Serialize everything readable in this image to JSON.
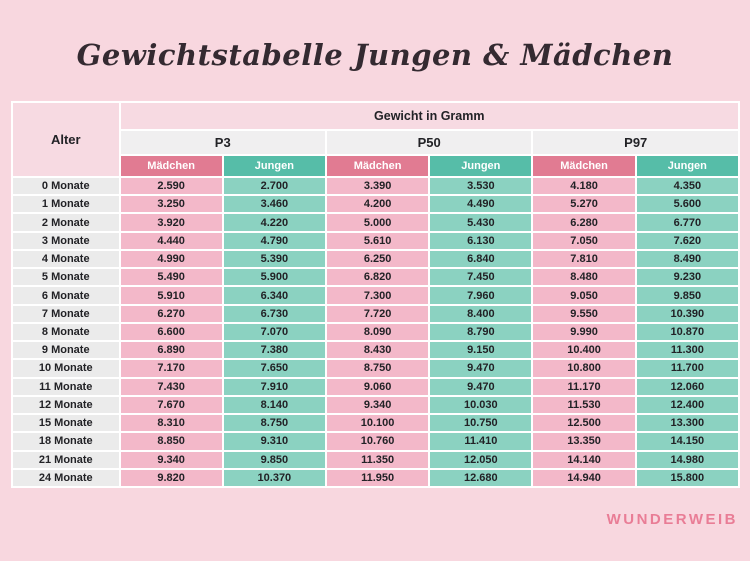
{
  "page": {
    "title": "Gewichtstabelle Jungen & Mädchen",
    "brand": "WUNDERWEIB"
  },
  "colors": {
    "page_background": "#f8d7df",
    "header_pink": "#f7dae2",
    "percentile_gray": "#f0eff0",
    "girls_header": "#e17b92",
    "boys_header": "#56bda8",
    "girls_cell": "#f3b8c9",
    "boys_cell": "#8bd2c1",
    "age_cell": "#ebebeb",
    "brand_pink": "#e97d96"
  },
  "table": {
    "corner_label": "Alter",
    "group_header": "Gewicht in Gramm",
    "percentiles": [
      "P3",
      "P50",
      "P97"
    ],
    "sex_labels": {
      "girls": "Mädchen",
      "boys": "Jungen"
    }
  },
  "chart_data": {
    "type": "table",
    "title": "Gewichtstabelle Jungen & Mädchen",
    "unit_header": "Gewicht in Gramm",
    "columns": [
      "Alter",
      "P3 Mädchen",
      "P3 Jungen",
      "P50 Mädchen",
      "P50 Jungen",
      "P97 Mädchen",
      "P97 Jungen"
    ],
    "rows": [
      [
        "0 Monate",
        "2.590",
        "2.700",
        "3.390",
        "3.530",
        "4.180",
        "4.350"
      ],
      [
        "1 Monate",
        "3.250",
        "3.460",
        "4.200",
        "4.490",
        "5.270",
        "5.600"
      ],
      [
        "2 Monate",
        "3.920",
        "4.220",
        "5.000",
        "5.430",
        "6.280",
        "6.770"
      ],
      [
        "3 Monate",
        "4.440",
        "4.790",
        "5.610",
        "6.130",
        "7.050",
        "7.620"
      ],
      [
        "4 Monate",
        "4.990",
        "5.390",
        "6.250",
        "6.840",
        "7.810",
        "8.490"
      ],
      [
        "5 Monate",
        "5.490",
        "5.900",
        "6.820",
        "7.450",
        "8.480",
        "9.230"
      ],
      [
        "6 Monate",
        "5.910",
        "6.340",
        "7.300",
        "7.960",
        "9.050",
        "9.850"
      ],
      [
        "7 Monate",
        "6.270",
        "6.730",
        "7.720",
        "8.400",
        "9.550",
        "10.390"
      ],
      [
        "8 Monate",
        "6.600",
        "7.070",
        "8.090",
        "8.790",
        "9.990",
        "10.870"
      ],
      [
        "9 Monate",
        "6.890",
        "7.380",
        "8.430",
        "9.150",
        "10.400",
        "11.300"
      ],
      [
        "10 Monate",
        "7.170",
        "7.650",
        "8.750",
        "9.470",
        "10.800",
        "11.700"
      ],
      [
        "11 Monate",
        "7.430",
        "7.910",
        "9.060",
        "9.470",
        "11.170",
        "12.060"
      ],
      [
        "12 Monate",
        "7.670",
        "8.140",
        "9.340",
        "10.030",
        "11.530",
        "12.400"
      ],
      [
        "15 Monate",
        "8.310",
        "8.750",
        "10.100",
        "10.750",
        "12.500",
        "13.300"
      ],
      [
        "18 Monate",
        "8.850",
        "9.310",
        "10.760",
        "11.410",
        "13.350",
        "14.150"
      ],
      [
        "21 Monate",
        "9.340",
        "9.850",
        "11.350",
        "12.050",
        "14.140",
        "14.980"
      ],
      [
        "24 Monate",
        "9.820",
        "10.370",
        "11.950",
        "12.680",
        "14.940",
        "15.800"
      ]
    ]
  }
}
